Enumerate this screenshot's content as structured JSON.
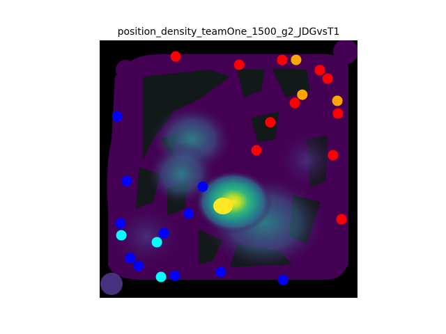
{
  "chart_data": {
    "type": "scatter",
    "title": "position_density_teamOne_1500_g2_JDGvsT1",
    "background": "density heatmap over map (viridis)",
    "axes_visible": false,
    "xlim": [
      0,
      1
    ],
    "ylim": [
      0,
      1
    ],
    "colors": {
      "red": "#ff0000",
      "orange": "#ffa500",
      "blue": "#0000ff",
      "cyan": "#00ffff"
    },
    "series": [
      {
        "color": "red",
        "points": [
          {
            "x": 0.295,
            "y": 0.937
          },
          {
            "x": 0.541,
            "y": 0.905
          },
          {
            "x": 0.708,
            "y": 0.924
          },
          {
            "x": 0.854,
            "y": 0.884
          },
          {
            "x": 0.884,
            "y": 0.851
          },
          {
            "x": 0.757,
            "y": 0.757
          },
          {
            "x": 0.924,
            "y": 0.716
          },
          {
            "x": 0.662,
            "y": 0.682
          },
          {
            "x": 0.608,
            "y": 0.573
          },
          {
            "x": 0.905,
            "y": 0.554
          },
          {
            "x": 0.938,
            "y": 0.305
          }
        ]
      },
      {
        "color": "orange",
        "points": [
          {
            "x": 0.762,
            "y": 0.924
          },
          {
            "x": 0.786,
            "y": 0.789
          },
          {
            "x": 0.922,
            "y": 0.765
          }
        ]
      },
      {
        "color": "blue",
        "points": [
          {
            "x": 0.068,
            "y": 0.705
          },
          {
            "x": 0.105,
            "y": 0.454
          },
          {
            "x": 0.4,
            "y": 0.432
          },
          {
            "x": 0.345,
            "y": 0.327
          },
          {
            "x": 0.081,
            "y": 0.289
          },
          {
            "x": 0.249,
            "y": 0.251
          },
          {
            "x": 0.119,
            "y": 0.154
          },
          {
            "x": 0.151,
            "y": 0.124
          },
          {
            "x": 0.292,
            "y": 0.086
          },
          {
            "x": 0.47,
            "y": 0.1
          },
          {
            "x": 0.711,
            "y": 0.07
          }
        ]
      },
      {
        "color": "cyan",
        "points": [
          {
            "x": 0.084,
            "y": 0.243
          },
          {
            "x": 0.222,
            "y": 0.216
          },
          {
            "x": 0.238,
            "y": 0.081
          }
        ]
      }
    ]
  }
}
